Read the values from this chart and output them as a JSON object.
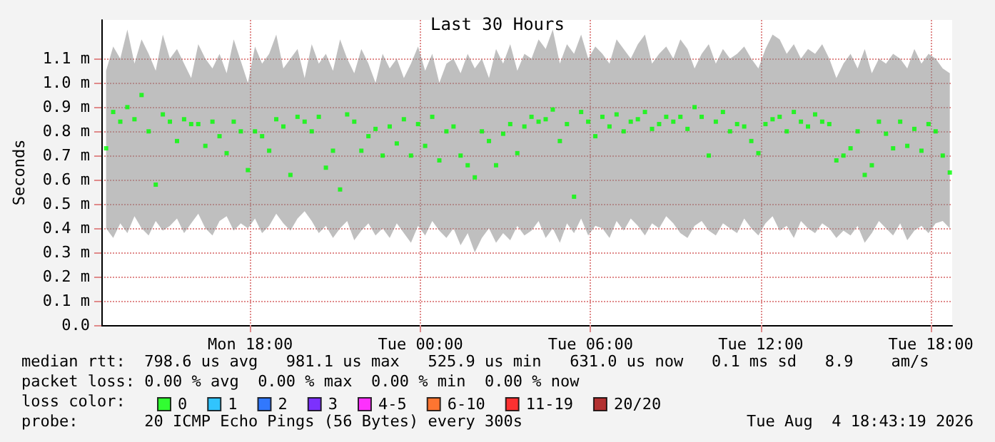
{
  "chart_data": {
    "type": "scatter",
    "title": "Last 30 Hours",
    "ylabel": "Seconds",
    "annotations": [
      "median rtt:  798.6 us avg   981.1 us max   525.9 us min   631.0 us now   0.1 ms sd   8.9    am/s",
      "packet loss: 0.00 % avg  0.00 % max  0.00 % min  0.00 % now",
      "loss color:",
      "probe:       20 ICMP Echo Pings (56 Bytes) every 300s",
      "Tue Aug  4 18:43:19 2026"
    ],
    "xlim": [
      "2026-08-03T12:45",
      "2026-08-04T18:45"
    ],
    "xticks": [
      {
        "value": "2026-08-03T18:00",
        "label": "Mon 18:00"
      },
      {
        "value": "2026-08-04T00:00",
        "label": "Tue 00:00"
      },
      {
        "value": "2026-08-04T06:00",
        "label": "Tue 06:00"
      },
      {
        "value": "2026-08-04T12:00",
        "label": "Tue 12:00"
      },
      {
        "value": "2026-08-04T18:00",
        "label": "Tue 18:00"
      }
    ],
    "ylim": [
      0,
      1.26
    ],
    "yticks": [
      {
        "value": 0,
        "label": "0.0"
      },
      {
        "value": 0.1,
        "label": "0.1 m"
      },
      {
        "value": 0.2,
        "label": "0.2 m"
      },
      {
        "value": 0.3,
        "label": "0.3 m"
      },
      {
        "value": 0.4,
        "label": "0.4 m"
      },
      {
        "value": 0.5,
        "label": "0.5 m"
      },
      {
        "value": 0.6,
        "label": "0.6 m"
      },
      {
        "value": 0.7,
        "label": "0.7 m"
      },
      {
        "value": 0.8,
        "label": "0.8 m"
      },
      {
        "value": 0.9,
        "label": "0.9 m"
      },
      {
        "value": 1.0,
        "label": "1.0 m"
      },
      {
        "value": 1.1,
        "label": "1.1 m"
      }
    ],
    "x": [
      "2026-08-03T12:55",
      "2026-08-03T13:10",
      "2026-08-03T13:25",
      "2026-08-03T13:40",
      "2026-08-03T13:55",
      "2026-08-03T14:10",
      "2026-08-03T14:25",
      "2026-08-03T14:40",
      "2026-08-03T14:55",
      "2026-08-03T15:10",
      "2026-08-03T15:25",
      "2026-08-03T15:40",
      "2026-08-03T15:55",
      "2026-08-03T16:10",
      "2026-08-03T16:25",
      "2026-08-03T16:40",
      "2026-08-03T16:55",
      "2026-08-03T17:10",
      "2026-08-03T17:25",
      "2026-08-03T17:40",
      "2026-08-03T17:55",
      "2026-08-03T18:10",
      "2026-08-03T18:25",
      "2026-08-03T18:40",
      "2026-08-03T18:55",
      "2026-08-03T19:10",
      "2026-08-03T19:25",
      "2026-08-03T19:40",
      "2026-08-03T19:55",
      "2026-08-03T20:10",
      "2026-08-03T20:25",
      "2026-08-03T20:40",
      "2026-08-03T20:55",
      "2026-08-03T21:10",
      "2026-08-03T21:25",
      "2026-08-03T21:40",
      "2026-08-03T21:55",
      "2026-08-03T22:10",
      "2026-08-03T22:25",
      "2026-08-03T22:40",
      "2026-08-03T22:55",
      "2026-08-03T23:10",
      "2026-08-03T23:25",
      "2026-08-03T23:40",
      "2026-08-03T23:55",
      "2026-08-04T00:10",
      "2026-08-04T00:25",
      "2026-08-04T00:40",
      "2026-08-04T00:55",
      "2026-08-04T01:10",
      "2026-08-04T01:25",
      "2026-08-04T01:40",
      "2026-08-04T01:55",
      "2026-08-04T02:10",
      "2026-08-04T02:25",
      "2026-08-04T02:40",
      "2026-08-04T02:55",
      "2026-08-04T03:10",
      "2026-08-04T03:25",
      "2026-08-04T03:40",
      "2026-08-04T03:55",
      "2026-08-04T04:10",
      "2026-08-04T04:25",
      "2026-08-04T04:40",
      "2026-08-04T04:55",
      "2026-08-04T05:10",
      "2026-08-04T05:25",
      "2026-08-04T05:40",
      "2026-08-04T05:55",
      "2026-08-04T06:10",
      "2026-08-04T06:25",
      "2026-08-04T06:40",
      "2026-08-04T06:55",
      "2026-08-04T07:10",
      "2026-08-04T07:25",
      "2026-08-04T07:40",
      "2026-08-04T07:55",
      "2026-08-04T08:10",
      "2026-08-04T08:25",
      "2026-08-04T08:40",
      "2026-08-04T08:55",
      "2026-08-04T09:10",
      "2026-08-04T09:25",
      "2026-08-04T09:40",
      "2026-08-04T09:55",
      "2026-08-04T10:10",
      "2026-08-04T10:25",
      "2026-08-04T10:40",
      "2026-08-04T10:55",
      "2026-08-04T11:10",
      "2026-08-04T11:25",
      "2026-08-04T11:40",
      "2026-08-04T11:55",
      "2026-08-04T12:10",
      "2026-08-04T12:25",
      "2026-08-04T12:40",
      "2026-08-04T12:55",
      "2026-08-04T13:10",
      "2026-08-04T13:25",
      "2026-08-04T13:40",
      "2026-08-04T13:55",
      "2026-08-04T14:10",
      "2026-08-04T14:25",
      "2026-08-04T14:40",
      "2026-08-04T14:55",
      "2026-08-04T15:10",
      "2026-08-04T15:25",
      "2026-08-04T15:40",
      "2026-08-04T15:55",
      "2026-08-04T16:10",
      "2026-08-04T16:25",
      "2026-08-04T16:40",
      "2026-08-04T16:55",
      "2026-08-04T17:10",
      "2026-08-04T17:25",
      "2026-08-04T17:40",
      "2026-08-04T17:55",
      "2026-08-04T18:10",
      "2026-08-04T18:25",
      "2026-08-04T18:40"
    ],
    "legend": "bottom",
    "marker": "square",
    "grid": true,
    "series": [
      {
        "name": "0",
        "color": "#00ff00",
        "values": [
          0.73,
          0.88,
          0.84,
          0.9,
          0.85,
          0.95,
          0.8,
          0.58,
          0.87,
          0.84,
          0.76,
          0.85,
          0.83,
          0.83,
          0.74,
          0.84,
          0.78,
          0.71,
          0.84,
          0.8,
          0.64,
          0.8,
          0.78,
          0.72,
          0.85,
          0.82,
          0.62,
          0.86,
          0.84,
          0.8,
          0.86,
          0.65,
          0.72,
          0.56,
          0.87,
          0.84,
          0.72,
          0.78,
          0.81,
          0.7,
          0.82,
          0.75,
          0.85,
          0.7,
          0.83,
          0.74,
          0.86,
          0.68,
          0.8,
          0.82,
          0.7,
          0.66,
          0.61,
          0.8,
          0.76,
          0.66,
          0.79,
          0.83,
          0.71,
          0.82,
          0.86,
          0.84,
          0.85,
          0.89,
          0.76,
          0.83,
          0.53,
          0.88,
          0.84,
          0.78,
          0.86,
          0.82,
          0.87,
          0.8,
          0.84,
          0.85,
          0.88,
          0.81,
          0.83,
          0.86,
          0.84,
          0.86,
          0.81,
          0.9,
          0.86,
          0.7,
          0.84,
          0.88,
          0.8,
          0.83,
          0.82,
          0.76,
          0.71,
          0.83,
          0.85,
          0.86,
          0.8,
          0.88,
          0.84,
          0.82,
          0.87,
          0.84,
          0.83,
          0.68,
          0.7,
          0.73,
          0.8,
          0.62,
          0.66,
          0.84,
          0.79,
          0.73,
          0.84,
          0.74,
          0.81,
          0.72,
          0.83,
          0.8,
          0.7,
          0.63
        ],
        "lower": [
          0.4,
          0.36,
          0.42,
          0.38,
          0.45,
          0.4,
          0.37,
          0.43,
          0.39,
          0.41,
          0.44,
          0.38,
          0.42,
          0.46,
          0.4,
          0.37,
          0.43,
          0.45,
          0.39,
          0.42,
          0.4,
          0.44,
          0.38,
          0.41,
          0.46,
          0.42,
          0.39,
          0.44,
          0.47,
          0.43,
          0.38,
          0.41,
          0.36,
          0.4,
          0.43,
          0.35,
          0.39,
          0.42,
          0.37,
          0.4,
          0.36,
          0.42,
          0.38,
          0.34,
          0.41,
          0.37,
          0.43,
          0.39,
          0.36,
          0.4,
          0.33,
          0.38,
          0.3,
          0.36,
          0.4,
          0.34,
          0.38,
          0.35,
          0.41,
          0.37,
          0.39,
          0.43,
          0.36,
          0.4,
          0.34,
          0.42,
          0.38,
          0.44,
          0.37,
          0.41,
          0.4,
          0.36,
          0.43,
          0.39,
          0.44,
          0.41,
          0.37,
          0.42,
          0.4,
          0.45,
          0.42,
          0.38,
          0.36,
          0.41,
          0.43,
          0.39,
          0.37,
          0.42,
          0.4,
          0.38,
          0.44,
          0.4,
          0.37,
          0.42,
          0.45,
          0.39,
          0.41,
          0.36,
          0.43,
          0.4,
          0.38,
          0.42,
          0.4,
          0.36,
          0.39,
          0.37,
          0.41,
          0.34,
          0.38,
          0.43,
          0.4,
          0.37,
          0.42,
          0.35,
          0.39,
          0.41,
          0.38,
          0.42,
          0.43,
          0.4
        ],
        "upper": [
          1.05,
          1.15,
          1.1,
          1.22,
          1.08,
          1.18,
          1.12,
          1.05,
          1.2,
          1.1,
          1.14,
          1.08,
          1.02,
          1.16,
          1.1,
          1.06,
          1.12,
          1.04,
          1.18,
          1.09,
          1.0,
          1.15,
          1.08,
          1.12,
          1.2,
          1.06,
          1.1,
          1.14,
          1.02,
          1.16,
          1.08,
          1.12,
          1.05,
          1.18,
          1.1,
          1.04,
          1.14,
          1.08,
          1.0,
          1.12,
          1.06,
          1.1,
          1.02,
          1.08,
          1.15,
          1.05,
          1.12,
          1.0,
          1.08,
          1.1,
          1.04,
          1.12,
          1.06,
          1.1,
          1.02,
          1.14,
          1.08,
          1.16,
          1.05,
          1.12,
          1.1,
          1.18,
          1.14,
          1.22,
          1.08,
          1.16,
          1.12,
          1.2,
          1.1,
          1.15,
          1.12,
          1.08,
          1.18,
          1.14,
          1.1,
          1.16,
          1.2,
          1.08,
          1.12,
          1.15,
          1.1,
          1.18,
          1.14,
          1.06,
          1.12,
          1.16,
          1.08,
          1.14,
          1.1,
          1.12,
          1.15,
          1.1,
          1.06,
          1.14,
          1.2,
          1.18,
          1.12,
          1.16,
          1.1,
          1.14,
          1.12,
          1.16,
          1.1,
          1.02,
          1.08,
          1.12,
          1.06,
          1.14,
          1.04,
          1.1,
          1.08,
          1.12,
          1.1,
          1.06,
          1.14,
          1.08,
          1.12,
          1.1,
          1.06,
          1.04
        ]
      },
      {
        "name": "1",
        "color": "#00b8ff",
        "values": [
          null,
          null,
          null,
          null,
          null,
          null,
          null,
          null,
          null,
          null,
          null,
          null,
          null,
          null,
          null,
          null,
          null,
          null,
          null,
          null,
          null,
          null,
          null,
          null,
          null,
          null,
          null,
          null,
          null,
          null,
          null,
          null,
          null,
          null,
          null,
          null,
          null,
          null,
          null,
          null,
          null,
          null,
          null,
          null,
          null,
          null,
          null,
          null,
          null,
          null,
          null,
          null,
          null,
          null,
          null,
          null,
          null,
          null,
          null,
          null,
          null,
          null,
          null,
          null,
          null,
          null,
          null,
          null,
          null,
          null,
          null,
          null,
          null,
          null,
          null,
          null,
          null,
          null,
          null,
          null,
          null,
          null,
          null,
          null,
          null,
          null,
          null,
          null,
          null,
          null,
          null,
          null,
          null,
          null,
          null,
          null,
          null,
          null,
          null,
          null,
          null,
          null,
          null,
          null,
          null,
          null,
          null,
          null,
          null,
          null,
          null,
          null,
          null,
          null,
          null,
          null,
          null,
          null,
          null,
          null
        ]
      },
      {
        "name": "2",
        "color": "#0059ff",
        "values": [
          null,
          null,
          null,
          null,
          null,
          null,
          null,
          null,
          null,
          null,
          null,
          null,
          null,
          null,
          null,
          null,
          null,
          null,
          null,
          null,
          null,
          null,
          null,
          null,
          null,
          null,
          null,
          null,
          null,
          null,
          null,
          null,
          null,
          null,
          null,
          null,
          null,
          null,
          null,
          null,
          null,
          null,
          null,
          null,
          null,
          null,
          null,
          null,
          null,
          null,
          null,
          null,
          null,
          null,
          null,
          null,
          null,
          null,
          null,
          null,
          null,
          null,
          null,
          null,
          null,
          null,
          null,
          null,
          null,
          null,
          null,
          null,
          null,
          null,
          null,
          null,
          null,
          null,
          null,
          null,
          null,
          null,
          null,
          null,
          null,
          null,
          null,
          null,
          null,
          null,
          null,
          null,
          null,
          null,
          null,
          null,
          null,
          null,
          null,
          null,
          null,
          null,
          null,
          null,
          null,
          null,
          null,
          null,
          null,
          null,
          null,
          null,
          null,
          null,
          null,
          null,
          null,
          null,
          null,
          null
        ]
      },
      {
        "name": "3",
        "color": "#5e00ff",
        "values": [
          null,
          null,
          null,
          null,
          null,
          null,
          null,
          null,
          null,
          null,
          null,
          null,
          null,
          null,
          null,
          null,
          null,
          null,
          null,
          null,
          null,
          null,
          null,
          null,
          null,
          null,
          null,
          null,
          null,
          null,
          null,
          null,
          null,
          null,
          null,
          null,
          null,
          null,
          null,
          null,
          null,
          null,
          null,
          null,
          null,
          null,
          null,
          null,
          null,
          null,
          null,
          null,
          null,
          null,
          null,
          null,
          null,
          null,
          null,
          null,
          null,
          null,
          null,
          null,
          null,
          null,
          null,
          null,
          null,
          null,
          null,
          null,
          null,
          null,
          null,
          null,
          null,
          null,
          null,
          null,
          null,
          null,
          null,
          null,
          null,
          null,
          null,
          null,
          null,
          null,
          null,
          null,
          null,
          null,
          null,
          null,
          null,
          null,
          null,
          null,
          null,
          null,
          null,
          null,
          null,
          null,
          null,
          null,
          null,
          null,
          null,
          null,
          null,
          null,
          null,
          null,
          null,
          null,
          null,
          null
        ]
      },
      {
        "name": "4-5",
        "color": "#ff00ff",
        "values": [
          null,
          null,
          null,
          null,
          null,
          null,
          null,
          null,
          null,
          null,
          null,
          null,
          null,
          null,
          null,
          null,
          null,
          null,
          null,
          null,
          null,
          null,
          null,
          null,
          null,
          null,
          null,
          null,
          null,
          null,
          null,
          null,
          null,
          null,
          null,
          null,
          null,
          null,
          null,
          null,
          null,
          null,
          null,
          null,
          null,
          null,
          null,
          null,
          null,
          null,
          null,
          null,
          null,
          null,
          null,
          null,
          null,
          null,
          null,
          null,
          null,
          null,
          null,
          null,
          null,
          null,
          null,
          null,
          null,
          null,
          null,
          null,
          null,
          null,
          null,
          null,
          null,
          null,
          null,
          null,
          null,
          null,
          null,
          null,
          null,
          null,
          null,
          null,
          null,
          null,
          null,
          null,
          null,
          null,
          null,
          null,
          null,
          null,
          null,
          null,
          null,
          null,
          null,
          null,
          null,
          null,
          null,
          null,
          null,
          null,
          null,
          null,
          null,
          null,
          null,
          null,
          null,
          null,
          null,
          null
        ]
      },
      {
        "name": "6-10",
        "color": "#ff5500",
        "values": [
          null,
          null,
          null,
          null,
          null,
          null,
          null,
          null,
          null,
          null,
          null,
          null,
          null,
          null,
          null,
          null,
          null,
          null,
          null,
          null,
          null,
          null,
          null,
          null,
          null,
          null,
          null,
          null,
          null,
          null,
          null,
          null,
          null,
          null,
          null,
          null,
          null,
          null,
          null,
          null,
          null,
          null,
          null,
          null,
          null,
          null,
          null,
          null,
          null,
          null,
          null,
          null,
          null,
          null,
          null,
          null,
          null,
          null,
          null,
          null,
          null,
          null,
          null,
          null,
          null,
          null,
          null,
          null,
          null,
          null,
          null,
          null,
          null,
          null,
          null,
          null,
          null,
          null,
          null,
          null,
          null,
          null,
          null,
          null,
          null,
          null,
          null,
          null,
          null,
          null,
          null,
          null,
          null,
          null,
          null,
          null,
          null,
          null,
          null,
          null,
          null,
          null,
          null,
          null,
          null,
          null,
          null,
          null,
          null,
          null,
          null,
          null,
          null,
          null,
          null,
          null,
          null,
          null,
          null,
          null
        ]
      },
      {
        "name": "11-19",
        "color": "#ff0000",
        "values": [
          null,
          null,
          null,
          null,
          null,
          null,
          null,
          null,
          null,
          null,
          null,
          null,
          null,
          null,
          null,
          null,
          null,
          null,
          null,
          null,
          null,
          null,
          null,
          null,
          null,
          null,
          null,
          null,
          null,
          null,
          null,
          null,
          null,
          null,
          null,
          null,
          null,
          null,
          null,
          null,
          null,
          null,
          null,
          null,
          null,
          null,
          null,
          null,
          null,
          null,
          null,
          null,
          null,
          null,
          null,
          null,
          null,
          null,
          null,
          null,
          null,
          null,
          null,
          null,
          null,
          null,
          null,
          null,
          null,
          null,
          null,
          null,
          null,
          null,
          null,
          null,
          null,
          null,
          null,
          null,
          null,
          null,
          null,
          null,
          null,
          null,
          null,
          null,
          null,
          null,
          null,
          null,
          null,
          null,
          null,
          null,
          null,
          null,
          null,
          null,
          null,
          null,
          null,
          null,
          null,
          null,
          null,
          null,
          null,
          null,
          null,
          null,
          null,
          null,
          null,
          null,
          null,
          null,
          null,
          null
        ]
      },
      {
        "name": "20/20",
        "color": "#a10000",
        "values": [
          null,
          null,
          null,
          null,
          null,
          null,
          null,
          null,
          null,
          null,
          null,
          null,
          null,
          null,
          null,
          null,
          null,
          null,
          null,
          null,
          null,
          null,
          null,
          null,
          null,
          null,
          null,
          null,
          null,
          null,
          null,
          null,
          null,
          null,
          null,
          null,
          null,
          null,
          null,
          null,
          null,
          null,
          null,
          null,
          null,
          null,
          null,
          null,
          null,
          null,
          null,
          null,
          null,
          null,
          null,
          null,
          null,
          null,
          null,
          null,
          null,
          null,
          null,
          null,
          null,
          null,
          null,
          null,
          null,
          null,
          null,
          null,
          null,
          null,
          null,
          null,
          null,
          null,
          null,
          null,
          null,
          null,
          null,
          null,
          null,
          null,
          null,
          null,
          null,
          null,
          null,
          null,
          null,
          null,
          null,
          null,
          null,
          null,
          null,
          null,
          null,
          null,
          null,
          null,
          null,
          null,
          null,
          null,
          null,
          null,
          null,
          null,
          null,
          null,
          null,
          null,
          null,
          null,
          null,
          null
        ]
      }
    ]
  }
}
